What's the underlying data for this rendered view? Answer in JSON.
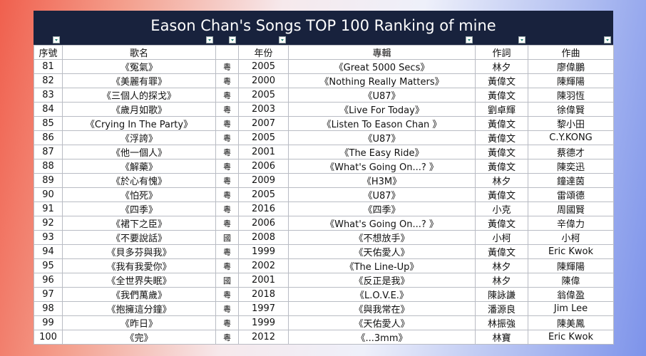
{
  "header": {
    "title": "Eason Chan's Songs TOP 100 Ranking of mine"
  },
  "table": {
    "headers": [
      "序號",
      "歌名",
      null,
      "年份",
      "專輯",
      "作詞",
      "作曲"
    ],
    "rows": [
      [
        81,
        "《冤氣》",
        "粵",
        2005,
        "《Great 5000 Secs》",
        "林夕",
        "廖偉鵬"
      ],
      [
        82,
        "《美麗有罪》",
        "粵",
        2000,
        "《Nothing Really Matters》",
        "黃偉文",
        "陳輝陽"
      ],
      [
        83,
        "《三個人的探戈》",
        "粵",
        2005,
        "《U87》",
        "黃偉文",
        "陳羽恆"
      ],
      [
        84,
        "《歲月如歌》",
        "粵",
        2003,
        "《Live For Today》",
        "劉卓輝",
        "徐偉賢"
      ],
      [
        85,
        "《Crying In The Party》",
        "粵",
        2007,
        "《Listen To Eason Chan 》",
        "黃偉文",
        "黎小田"
      ],
      [
        86,
        "《浮誇》",
        "粵",
        2005,
        "《U87》",
        "黃偉文",
        "C.Y.KONG"
      ],
      [
        87,
        "《他一個人》",
        "粵",
        2001,
        "《The Easy Ride》",
        "黃偉文",
        "蔡德才"
      ],
      [
        88,
        "《解藥》",
        "粵",
        2006,
        "《What's Going On...? 》",
        "黃偉文",
        "陳奕迅"
      ],
      [
        89,
        "《於心有愧》",
        "粵",
        2009,
        "《H3M》",
        "林夕",
        "鐘達茵"
      ],
      [
        90,
        "《怕死》",
        "粵",
        2005,
        "《U87》",
        "黃偉文",
        "雷頌德"
      ],
      [
        91,
        "《四季》",
        "粵",
        2016,
        "《四季》",
        "小克",
        "周國賢"
      ],
      [
        92,
        "《裙下之臣》",
        "粵",
        2006,
        "《What's Going On...? 》",
        "黃偉文",
        "辛偉力"
      ],
      [
        93,
        "《不要說話》",
        "國",
        2008,
        "《不想放手》",
        "小柯",
        "小柯"
      ],
      [
        94,
        "《貝多芬與我》",
        "粵",
        1999,
        "《天佑愛人》",
        "黃偉文",
        "Eric Kwok"
      ],
      [
        95,
        "《我有我愛你》",
        "粵",
        2002,
        "《The Line-Up》",
        "林夕",
        "陳輝陽"
      ],
      [
        96,
        "《全世界失眠》",
        "國",
        2001,
        "《反正是我》",
        "林夕",
        "陳偉"
      ],
      [
        97,
        "《我們萬歲》",
        "粵",
        2018,
        "《L.O.V.E.》",
        "陳詠謙",
        "翁偉盈"
      ],
      [
        98,
        "《抱擁這分鐘》",
        "粵",
        1997,
        "《與我常在》",
        "潘源良",
        "Jim Lee"
      ],
      [
        99,
        "《昨日》",
        "粵",
        1999,
        "《天佑愛人》",
        "林振強",
        "陳美鳳"
      ],
      [
        100,
        "《完》",
        "粵",
        2012,
        "《...3mm》",
        "林寶",
        "Eric Kwok"
      ]
    ]
  }
}
